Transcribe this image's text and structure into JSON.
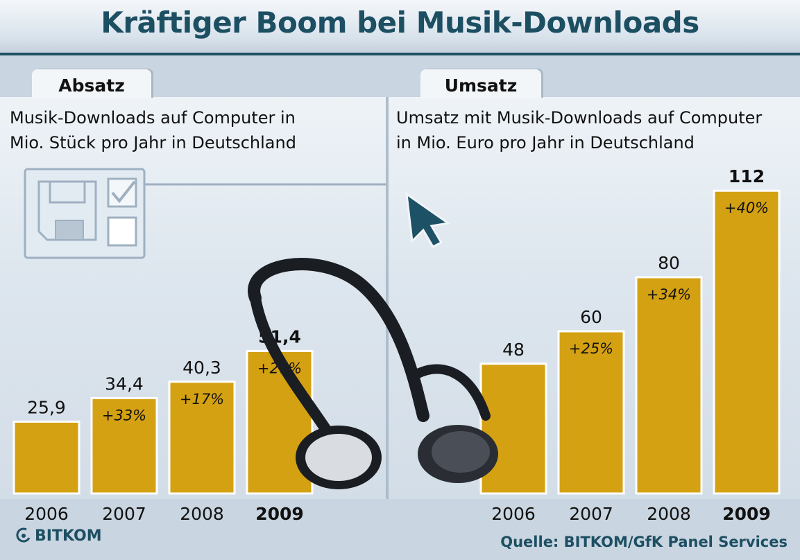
{
  "title": "Kräftiger Boom bei Musik-Downloads",
  "colors": {
    "bar": "#d4a112",
    "title": "#1d4f63",
    "background": "#c9d5e0"
  },
  "chart_data": [
    {
      "type": "bar",
      "tab": "Absatz",
      "title": "Musik-Downloads auf Computer in\nMio. Stück pro Jahr in Deutschland",
      "categories": [
        "2006",
        "2007",
        "2008",
        "2009"
      ],
      "values": [
        25.9,
        34.4,
        40.3,
        51.4
      ],
      "value_labels": [
        "25,9",
        "34,4",
        "40,3",
        "51,4"
      ],
      "growth_labels": [
        "",
        "+33%",
        "+17%",
        "+27%"
      ],
      "highlight_category": "2009"
    },
    {
      "type": "bar",
      "tab": "Umsatz",
      "title": "Umsatz mit Musik-Downloads auf Computer\nin Mio. Euro pro Jahr in Deutschland",
      "categories": [
        "2006",
        "2007",
        "2008",
        "2009"
      ],
      "values": [
        48,
        60,
        80,
        112
      ],
      "value_labels": [
        "48",
        "60",
        "80",
        "112"
      ],
      "growth_labels": [
        "",
        "+25%",
        "+34%",
        "+40%"
      ],
      "highlight_category": "2009"
    }
  ],
  "footer": {
    "logo": "BITKOM",
    "source": "Quelle: BITKOM/GfK Panel Services"
  },
  "decorations": [
    "floppy-disk-icon",
    "checkbox-icon",
    "cursor-arrow-icon",
    "headphones-image"
  ]
}
